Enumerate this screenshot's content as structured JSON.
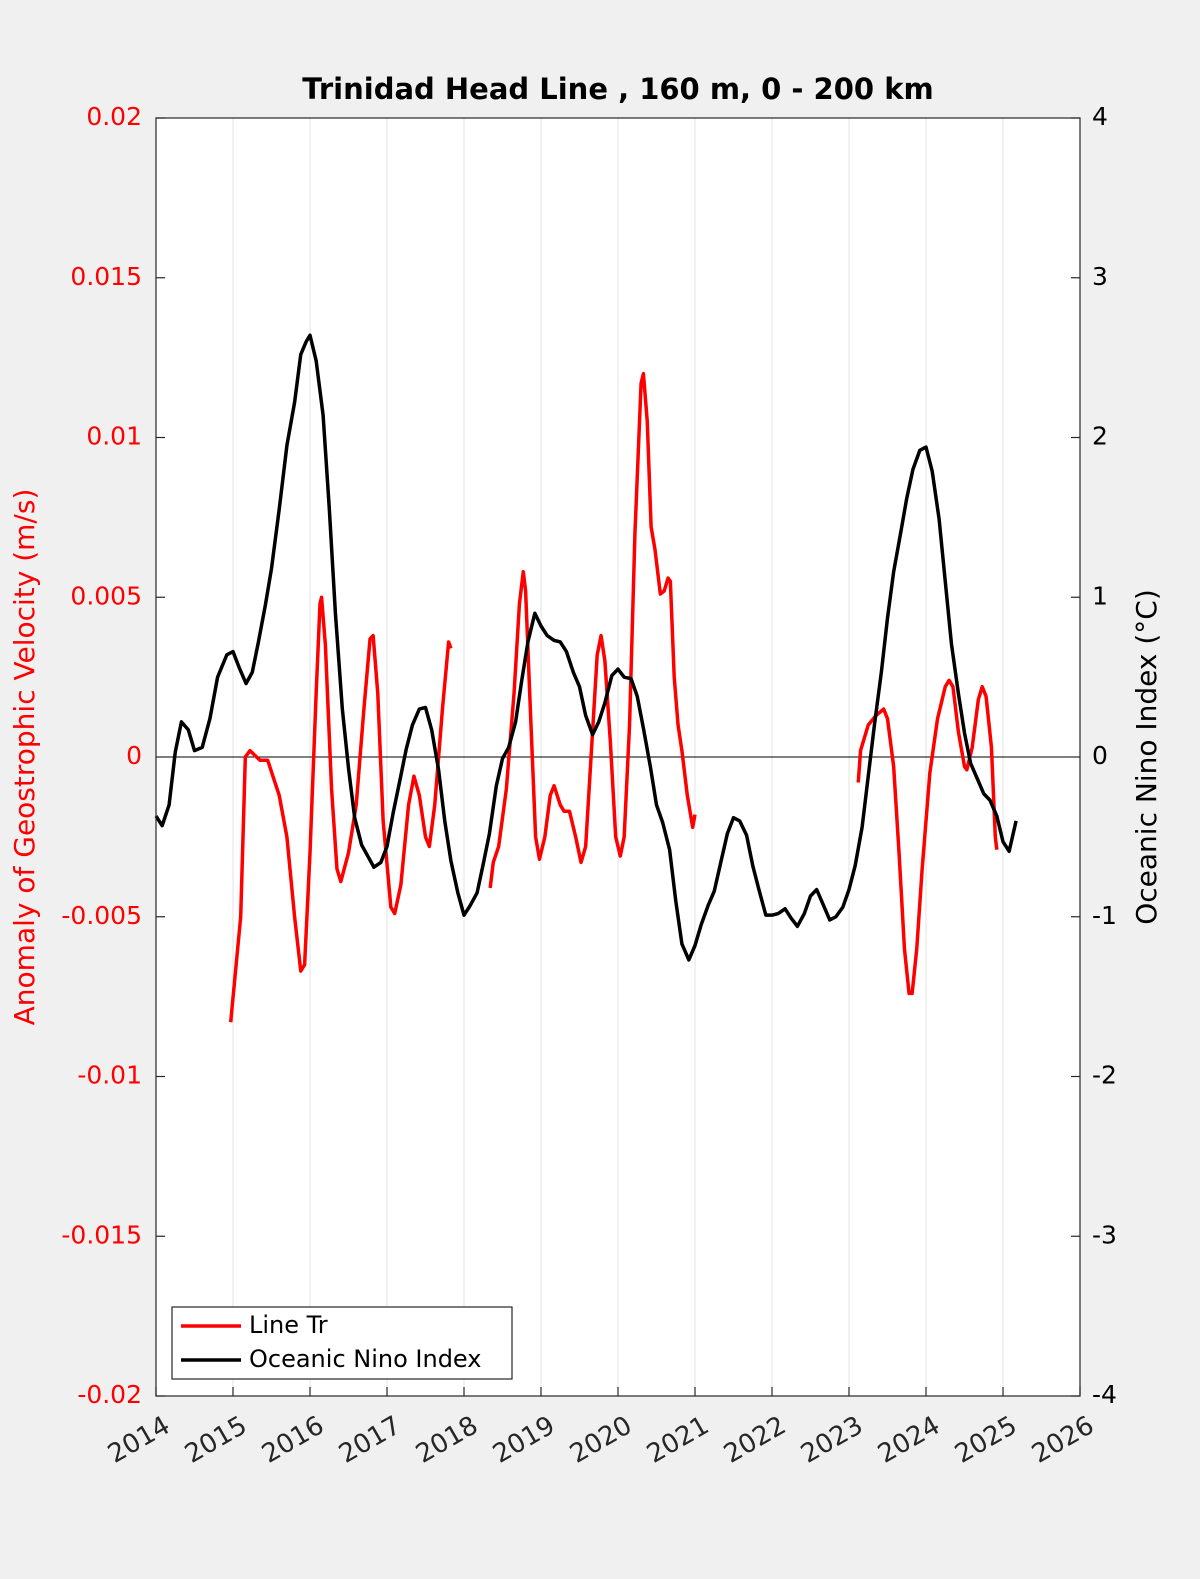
{
  "chart_data": {
    "type": "line",
    "title": "Trinidad Head Line , 160 m, 0 - 200 km",
    "ylabel": "Anomaly of Geostrophic Velocity (m/s)",
    "y2label": "Oceanic Nino Index (°C)",
    "xlim": [
      2014,
      2026
    ],
    "xticks": [
      2014,
      2015,
      2016,
      2017,
      2018,
      2019,
      2020,
      2021,
      2022,
      2023,
      2024,
      2025,
      2026
    ],
    "ylim": [
      -0.02,
      0.02
    ],
    "yticks": [
      -0.02,
      -0.015,
      -0.01,
      -0.005,
      0,
      0.005,
      0.01,
      0.015,
      0.02
    ],
    "y2lim": [
      -4,
      4
    ],
    "y2ticks": [
      -4,
      -3,
      -2,
      -1,
      0,
      1,
      2,
      3,
      4
    ],
    "grid": "x",
    "zero_line": true,
    "legend": "lower left",
    "series": [
      {
        "name": "Line Tr",
        "color": "#ff0000",
        "x": [
          2014.97,
          2015.1,
          2015.16,
          2015.22,
          2015.35,
          2015.45,
          2015.6,
          2015.7,
          2015.8,
          2015.88,
          2015.93,
          2016.0,
          2016.08,
          2016.13,
          2016.15,
          2016.2,
          2016.28,
          2016.35,
          2016.4,
          2016.5,
          2016.6,
          2016.7,
          2016.78,
          2016.82,
          2016.88,
          2016.95,
          2017.05,
          2017.1,
          2017.18,
          2017.28,
          2017.35,
          2017.42,
          2017.5,
          2017.55,
          2017.62,
          2017.72,
          2017.8,
          2017.83,
          2018.1,
          2018.34,
          2018.38,
          2018.45,
          2018.55,
          2018.65,
          2018.72,
          2018.77,
          2018.8,
          2018.87,
          2018.93,
          2018.98,
          2019.05,
          2019.12,
          2019.17,
          2019.25,
          2019.3,
          2019.37,
          2019.45,
          2019.52,
          2019.58,
          2019.65,
          2019.73,
          2019.78,
          2019.83,
          2019.9,
          2019.97,
          2020.03,
          2020.08,
          2020.15,
          2020.22,
          2020.3,
          2020.33,
          2020.38,
          2020.43,
          2020.48,
          2020.55,
          2020.6,
          2020.65,
          2020.68,
          2020.73,
          2020.78,
          2020.83,
          2020.9,
          2020.97,
          2021.0,
          2022.0,
          2023.12,
          2023.15,
          2023.25,
          2023.35,
          2023.45,
          2023.5,
          2023.58,
          2023.65,
          2023.72,
          2023.78,
          2023.82,
          2023.88,
          2023.95,
          2024.05,
          2024.15,
          2024.25,
          2024.3,
          2024.35,
          2024.42,
          2024.5,
          2024.53,
          2024.6,
          2024.68,
          2024.73,
          2024.78,
          2024.85,
          2024.9,
          2024.92
        ],
        "values": [
          -0.0083,
          -0.005,
          0.0,
          0.0002,
          -0.0001,
          -0.0001,
          -0.0012,
          -0.0025,
          -0.005,
          -0.0067,
          -0.0065,
          -0.003,
          0.002,
          0.0048,
          0.005,
          0.0035,
          -0.001,
          -0.0035,
          -0.0039,
          -0.003,
          -0.0015,
          0.0015,
          0.0037,
          0.0038,
          0.002,
          -0.002,
          -0.0047,
          -0.0049,
          -0.004,
          -0.0015,
          -0.0006,
          -0.0012,
          -0.0025,
          -0.0028,
          -0.0015,
          0.0015,
          0.0036,
          0.0034,
          null,
          -0.0041,
          -0.0033,
          -0.0028,
          -0.001,
          0.002,
          0.0048,
          0.0058,
          0.0052,
          0.001,
          -0.0025,
          -0.0032,
          -0.0025,
          -0.0012,
          -0.0009,
          -0.0015,
          -0.0017,
          -0.0017,
          -0.0025,
          -0.0033,
          -0.0028,
          0.0,
          0.0032,
          0.0038,
          0.003,
          0.0005,
          -0.0025,
          -0.0031,
          -0.0025,
          0.001,
          0.007,
          0.0117,
          0.012,
          0.0105,
          0.0072,
          0.0065,
          0.0051,
          0.0052,
          0.0056,
          0.0055,
          0.0025,
          0.001,
          0.0002,
          -0.0012,
          -0.0022,
          -0.0018,
          null,
          -0.0008,
          0.0002,
          0.001,
          0.0013,
          0.0015,
          0.0012,
          -0.0003,
          -0.003,
          -0.006,
          -0.0074,
          -0.0074,
          -0.006,
          -0.0035,
          -0.0005,
          0.0012,
          0.0022,
          0.0024,
          0.0022,
          0.0008,
          -0.0003,
          -0.0004,
          0.0003,
          0.0018,
          0.0022,
          0.0019,
          0.0003,
          -0.0025,
          -0.0029
        ]
      },
      {
        "name": "Oceanic Nino Index",
        "color": "#000000",
        "axis": "y2",
        "x": [
          2014.0,
          2014.08,
          2014.17,
          2014.25,
          2014.33,
          2014.42,
          2014.5,
          2014.6,
          2014.7,
          2014.8,
          2014.92,
          2015.0,
          2015.08,
          2015.17,
          2015.25,
          2015.33,
          2015.42,
          2015.5,
          2015.6,
          2015.7,
          2015.8,
          2015.88,
          2015.95,
          2016.0,
          2016.08,
          2016.17,
          2016.25,
          2016.33,
          2016.42,
          2016.5,
          2016.58,
          2016.67,
          2016.75,
          2016.83,
          2016.92,
          2017.0,
          2017.08,
          2017.17,
          2017.25,
          2017.33,
          2017.42,
          2017.5,
          2017.58,
          2017.67,
          2017.75,
          2017.83,
          2017.92,
          2018.0,
          2018.08,
          2018.17,
          2018.25,
          2018.33,
          2018.42,
          2018.5,
          2018.58,
          2018.67,
          2018.75,
          2018.83,
          2018.92,
          2019.0,
          2019.08,
          2019.17,
          2019.25,
          2019.33,
          2019.42,
          2019.5,
          2019.58,
          2019.67,
          2019.75,
          2019.83,
          2019.92,
          2020.0,
          2020.08,
          2020.17,
          2020.25,
          2020.33,
          2020.42,
          2020.5,
          2020.58,
          2020.67,
          2020.75,
          2020.83,
          2020.92,
          2021.0,
          2021.08,
          2021.17,
          2021.25,
          2021.33,
          2021.42,
          2021.5,
          2021.58,
          2021.67,
          2021.75,
          2021.83,
          2021.92,
          2022.0,
          2022.08,
          2022.17,
          2022.25,
          2022.33,
          2022.42,
          2022.5,
          2022.58,
          2022.67,
          2022.75,
          2022.83,
          2022.92,
          2023.0,
          2023.08,
          2023.17,
          2023.25,
          2023.33,
          2023.42,
          2023.5,
          2023.58,
          2023.67,
          2023.75,
          2023.83,
          2023.92,
          2024.0,
          2024.08,
          2024.17,
          2024.25,
          2024.33,
          2024.42,
          2024.5,
          2024.58,
          2024.67,
          2024.75,
          2024.83,
          2024.92,
          2025.0,
          2025.08,
          2025.17
        ],
        "values": [
          -0.37,
          -0.43,
          -0.3,
          0.03,
          0.22,
          0.17,
          0.04,
          0.06,
          0.24,
          0.5,
          0.64,
          0.66,
          0.56,
          0.46,
          0.53,
          0.72,
          0.95,
          1.18,
          1.55,
          1.95,
          2.22,
          2.52,
          2.6,
          2.64,
          2.48,
          2.14,
          1.56,
          0.9,
          0.3,
          -0.07,
          -0.38,
          -0.55,
          -0.62,
          -0.69,
          -0.66,
          -0.56,
          -0.35,
          -0.14,
          0.05,
          0.2,
          0.3,
          0.31,
          0.17,
          -0.08,
          -0.4,
          -0.65,
          -0.85,
          -0.99,
          -0.93,
          -0.85,
          -0.67,
          -0.48,
          -0.18,
          -0.01,
          0.06,
          0.22,
          0.48,
          0.72,
          0.9,
          0.82,
          0.76,
          0.73,
          0.72,
          0.66,
          0.53,
          0.44,
          0.26,
          0.14,
          0.22,
          0.34,
          0.51,
          0.55,
          0.5,
          0.49,
          0.38,
          0.18,
          -0.06,
          -0.3,
          -0.41,
          -0.58,
          -0.9,
          -1.17,
          -1.27,
          -1.18,
          -1.05,
          -0.93,
          -0.84,
          -0.67,
          -0.48,
          -0.38,
          -0.4,
          -0.49,
          -0.68,
          -0.83,
          -0.99,
          -0.99,
          -0.98,
          -0.95,
          -1.01,
          -1.06,
          -0.98,
          -0.87,
          -0.83,
          -0.93,
          -1.02,
          -1.0,
          -0.94,
          -0.83,
          -0.68,
          -0.44,
          -0.12,
          0.2,
          0.53,
          0.87,
          1.16,
          1.4,
          1.62,
          1.8,
          1.92,
          1.94,
          1.79,
          1.49,
          1.1,
          0.71,
          0.4,
          0.15,
          -0.04,
          -0.14,
          -0.23,
          -0.27,
          -0.37,
          -0.53,
          -0.59,
          -0.4
        ]
      }
    ]
  }
}
